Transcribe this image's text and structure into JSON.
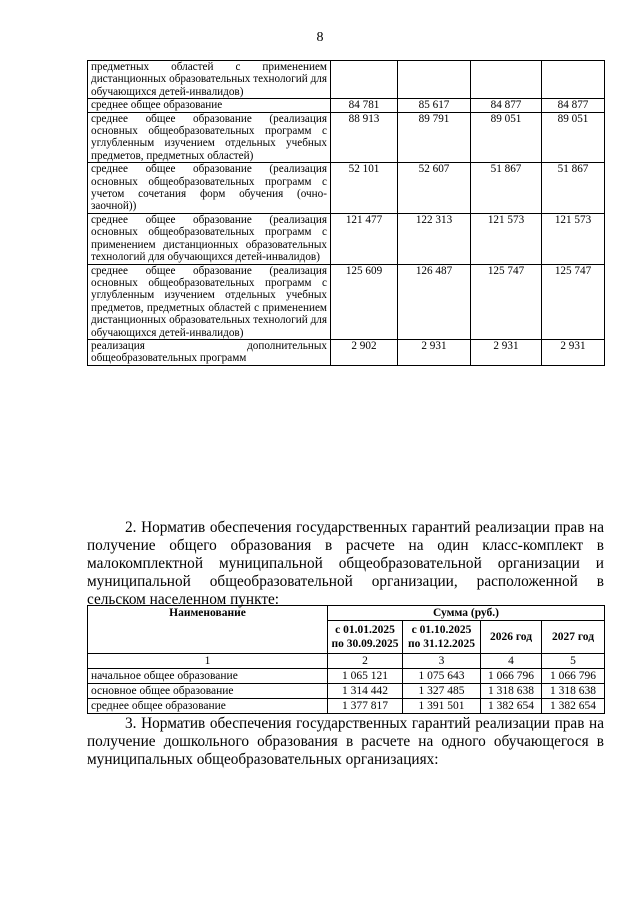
{
  "page_number": "8",
  "table1": {
    "rows": [
      {
        "name": "предметных областей с применением дистанционных образовательных технологий для обучающихся детей-инвалидов)",
        "values": [
          "",
          "",
          "",
          ""
        ]
      },
      {
        "name": "среднее общее образование",
        "values": [
          "84 781",
          "85 617",
          "84 877",
          "84 877"
        ]
      },
      {
        "name": "среднее общее образование (реализация основных общеобразовательных программ с углубленным изучением отдельных учебных предметов, предметных областей)",
        "values": [
          "88 913",
          "89 791",
          "89 051",
          "89 051"
        ]
      },
      {
        "name": "среднее общее образование (реализация основных общеобразовательных программ с учетом сочетания форм обучения (очно-заочной))",
        "values": [
          "52 101",
          "52 607",
          "51 867",
          "51 867"
        ]
      },
      {
        "name": "среднее общее образование (реализация основных общеобразовательных программ с применением дистанционных образовательных технологий для обучающихся детей-инвалидов)",
        "values": [
          "121 477",
          "122 313",
          "121 573",
          "121 573"
        ]
      },
      {
        "name": "среднее общее образование (реализация основных общеобразовательных программ с углубленным изучением отдельных учебных предметов, предметных областей с применением дистанционных образовательных технологий для обучающихся детей-инвалидов)",
        "values": [
          "125 609",
          "126 487",
          "125 747",
          "125 747"
        ]
      },
      {
        "name": "реализация дополнительных общеобразовательных программ",
        "values": [
          "2 902",
          "2 931",
          "2 931",
          "2 931"
        ]
      }
    ]
  },
  "paragraph2": "2. Норматив обеспечения государственных гарантий реализации прав на получение общего образования в расчете на один класс-комплект в малокомплектной муниципальной общеобразовательной организации и муниципальной общеобразовательной организации, расположенной в сельском населенном пункте:",
  "table2": {
    "header_name": "Наименование",
    "header_sum": "Сумма (руб.)",
    "columns": [
      "с 01.01.2025 по 30.09.2025",
      "с 01.10.2025 по 31.12.2025",
      "2026 год",
      "2027 год"
    ],
    "column_numbers": [
      "1",
      "2",
      "3",
      "4",
      "5"
    ],
    "rows": [
      {
        "name": "начальное общее образование",
        "values": [
          "1 065 121",
          "1 075 643",
          "1 066 796",
          "1 066 796"
        ]
      },
      {
        "name": "основное общее образование",
        "values": [
          "1 314 442",
          "1 327 485",
          "1 318 638",
          "1 318 638"
        ]
      },
      {
        "name": "среднее общее образование",
        "values": [
          "1 377 817",
          "1 391 501",
          "1 382 654",
          "1 382 654"
        ]
      }
    ]
  },
  "paragraph3": "3. Норматив обеспечения государственных гарантий реализации прав на получение дошкольного образования в расчете на одного обучающегося в муниципальных общеобразовательных организациях:"
}
